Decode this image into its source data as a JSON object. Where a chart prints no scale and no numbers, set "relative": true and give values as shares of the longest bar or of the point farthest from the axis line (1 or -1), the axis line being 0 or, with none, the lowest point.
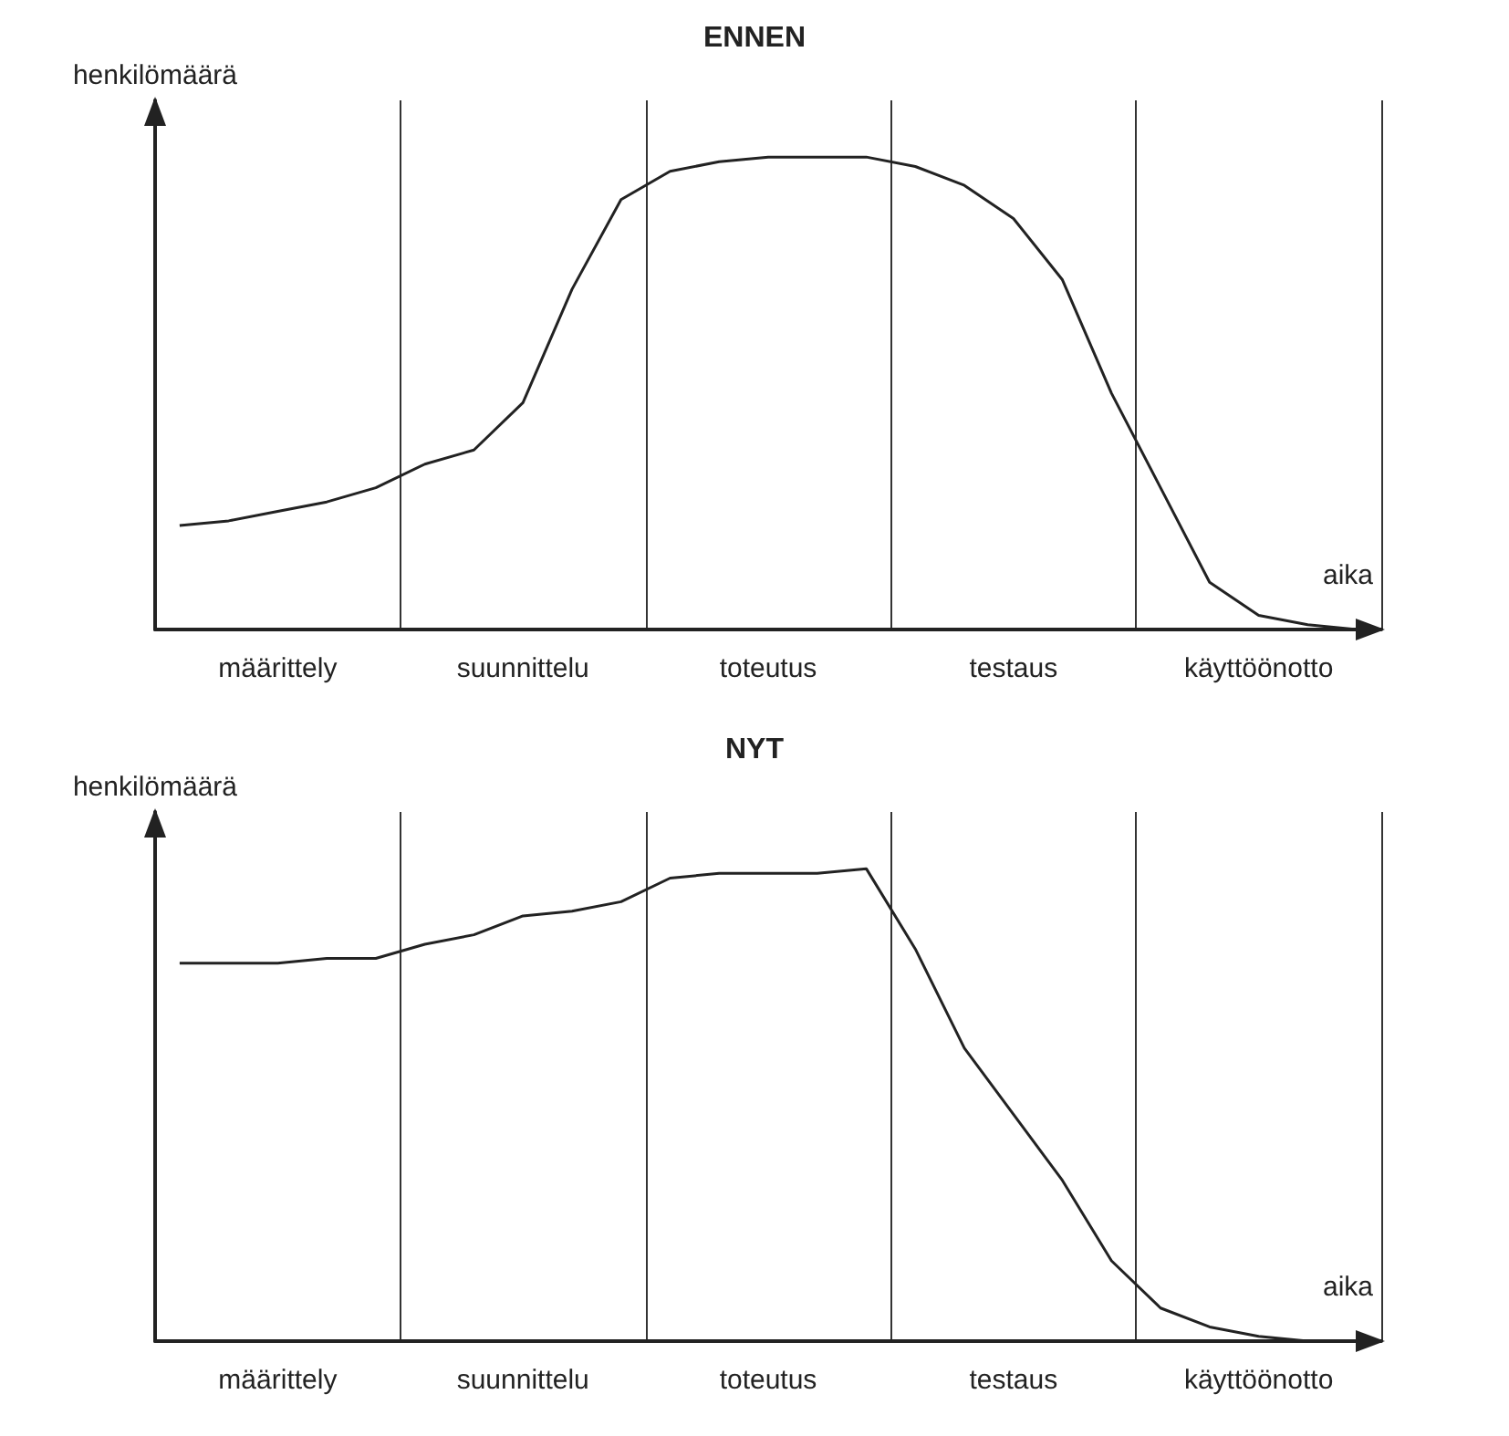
{
  "chart_data": [
    {
      "type": "line",
      "title": "ENNEN",
      "ylabel": "henkilömäärä",
      "xlabel": "aika",
      "relative": true,
      "grid": "x",
      "marker": "none",
      "tick_labels": "x",
      "color": "#222222",
      "categories": [
        null,
        null,
        "määrittely",
        null,
        null,
        null,
        null,
        "suunnittelu",
        null,
        null,
        null,
        null,
        "toteutus",
        null,
        null,
        null,
        null,
        "testaus",
        null,
        null,
        null,
        null,
        "käyttöönotto",
        null,
        null
      ],
      "values": [
        0.22,
        0.23,
        0.25,
        0.27,
        0.3,
        0.35,
        0.38,
        0.48,
        0.72,
        0.91,
        0.97,
        0.99,
        1,
        1,
        1,
        0.98,
        0.94,
        0.87,
        0.74,
        0.5,
        0.3,
        0.1,
        0.03,
        0.01,
        0
      ]
    },
    {
      "type": "line",
      "title": "NYT",
      "ylabel": "henkilömäärä",
      "xlabel": "aika",
      "relative": true,
      "grid": "x",
      "marker": "none",
      "tick_labels": "x",
      "color": "#222222",
      "categories": [
        null,
        null,
        "määrittely",
        null,
        null,
        null,
        null,
        "suunnittelu",
        null,
        null,
        null,
        null,
        "toteutus",
        null,
        null,
        null,
        null,
        "testaus",
        null,
        null,
        null,
        null,
        "käyttöönotto",
        null,
        null
      ],
      "values": [
        0.8,
        0.8,
        0.8,
        0.81,
        0.81,
        0.84,
        0.86,
        0.9,
        0.91,
        0.93,
        0.98,
        0.99,
        0.99,
        0.99,
        1,
        0.83,
        0.62,
        0.48,
        0.34,
        0.17,
        0.07,
        0.03,
        0.01,
        0,
        0
      ]
    }
  ]
}
